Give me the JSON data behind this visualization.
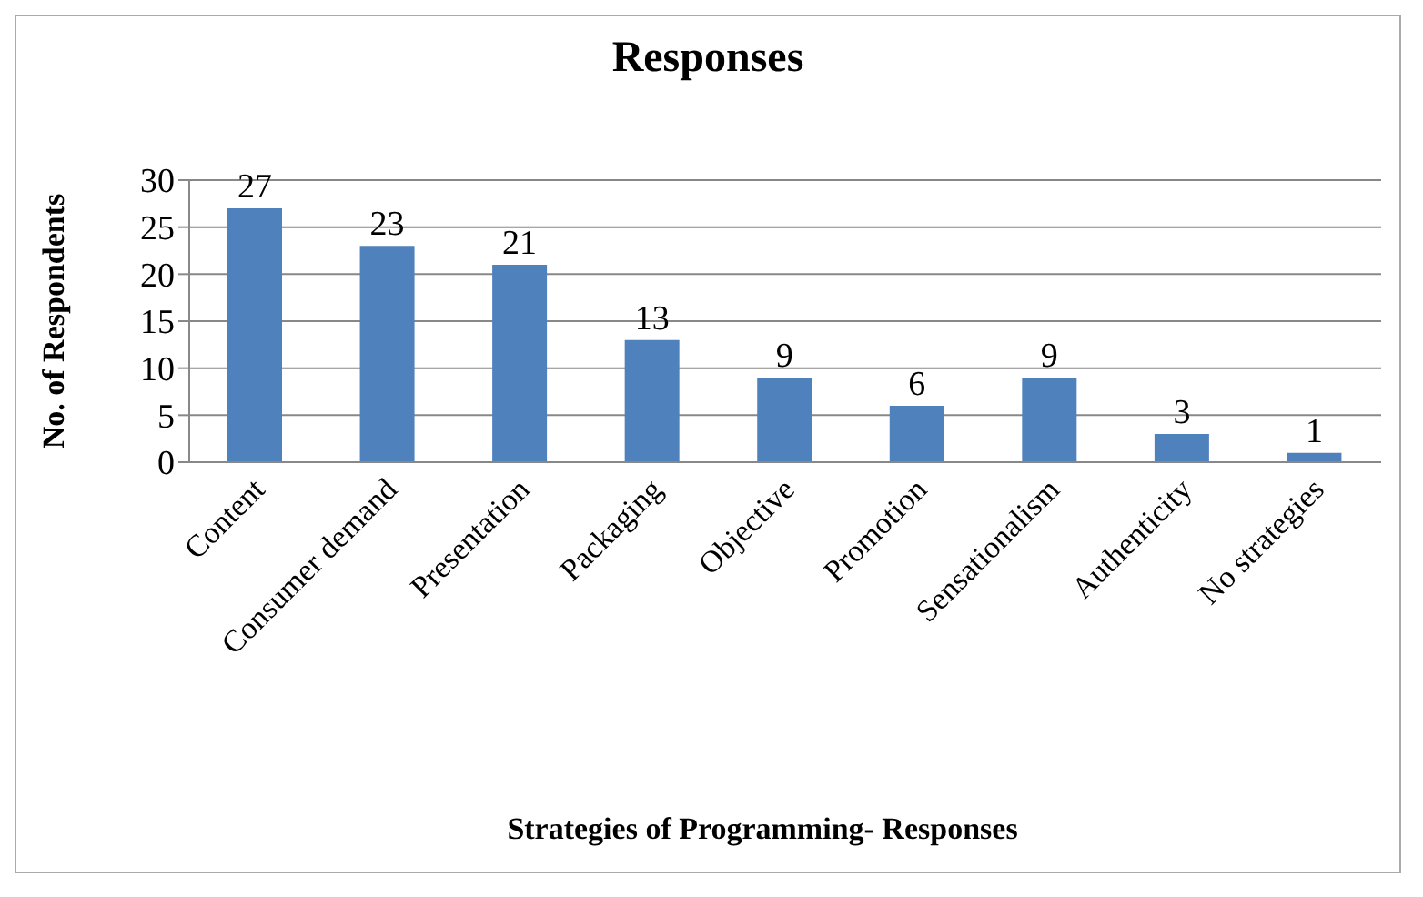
{
  "chart_data": {
    "type": "bar",
    "title": "Responses",
    "xlabel": "Strategies of Programming- Responses",
    "ylabel": "No. of Respondents",
    "categories": [
      "Content",
      "Consumer demand",
      "Presentation",
      "Packaging",
      "Objective",
      "Promotion",
      "Sensationalism",
      "Authenticity",
      "No strategies"
    ],
    "values": [
      27,
      23,
      21,
      13,
      9,
      6,
      9,
      3,
      1
    ],
    "color": "#4f81bd",
    "ylim": [
      0,
      30
    ],
    "yticks": [
      0,
      5,
      10,
      15,
      20,
      25,
      30
    ],
    "grid": "y",
    "data_labels": true
  }
}
